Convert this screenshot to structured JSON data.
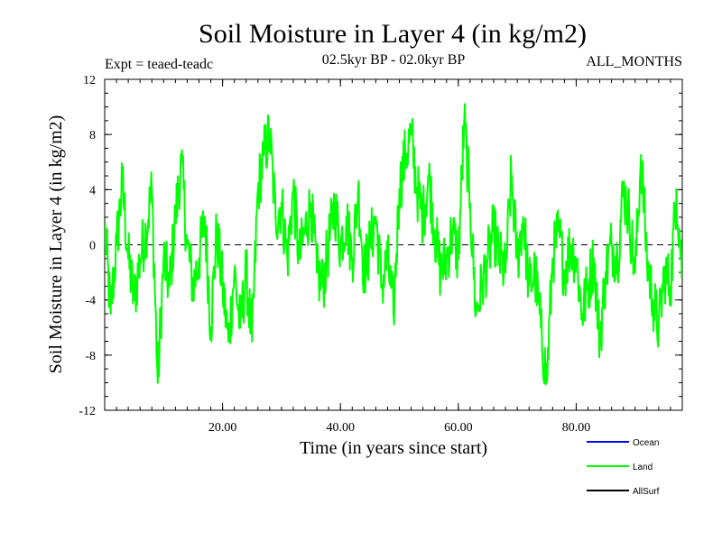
{
  "chart_data": {
    "type": "line",
    "title": "Soil Moisture in Layer 4 (in kg/m2)",
    "subtitle_left": "Expt = teaed-teadc",
    "subtitle_center": "02.5kyr BP - 02.0kyr BP",
    "subtitle_right": "ALL_MONTHS",
    "xlabel": "Time (in years since start)",
    "ylabel": "Soil Moisture in Layer 4 (in kg/m2)",
    "xlim": [
      0,
      98
    ],
    "ylim": [
      -12,
      12
    ],
    "x_ticks": [
      20,
      40,
      60,
      80
    ],
    "x_tick_labels": [
      "20.00",
      "40.00",
      "60.00",
      "80.00"
    ],
    "y_ticks": [
      -12,
      -8,
      -4,
      0,
      4,
      8,
      12
    ],
    "y_tick_labels": [
      "-12",
      "-8",
      "-4",
      "0",
      "4",
      "8",
      "12"
    ],
    "zero_line": "dashed",
    "legend": [
      {
        "name": "Ocean",
        "color": "#0000ff"
      },
      {
        "name": "Land",
        "color": "#00ff00"
      },
      {
        "name": "AllSurf",
        "color": "#000000"
      }
    ],
    "series": [
      {
        "name": "Land",
        "color": "#00ff00",
        "x": [
          0,
          1,
          2,
          3,
          4,
          5,
          6,
          7,
          8,
          9,
          10,
          11,
          12,
          13,
          14,
          15,
          16,
          17,
          18,
          19,
          20,
          21,
          22,
          23,
          24,
          25,
          26,
          27,
          28,
          29,
          30,
          31,
          32,
          33,
          34,
          35,
          36,
          37,
          38,
          39,
          40,
          41,
          42,
          43,
          44,
          45,
          46,
          47,
          48,
          49,
          50,
          51,
          52,
          53,
          54,
          55,
          56,
          57,
          58,
          59,
          60,
          61,
          62,
          63,
          64,
          65,
          66,
          67,
          68,
          69,
          70,
          71,
          72,
          73,
          74,
          75,
          76,
          77,
          78,
          79,
          80,
          81,
          82,
          83,
          84,
          85,
          86,
          87,
          88,
          89,
          90,
          91,
          92,
          93,
          94,
          95,
          96,
          97,
          98
        ],
        "values": [
          1.5,
          -5,
          0,
          4.5,
          -1,
          -4,
          -1,
          1,
          4,
          -10,
          -1,
          -3,
          2,
          6,
          0,
          -3,
          -1,
          2,
          -6,
          1,
          -3,
          -7,
          -2,
          -6,
          -2,
          -7,
          4,
          6.5,
          8,
          2,
          3,
          -1,
          4,
          -1,
          1,
          3,
          -2,
          -3,
          0,
          3,
          0,
          2,
          -1,
          4,
          -2,
          0,
          2,
          -3,
          -1,
          -5,
          4,
          6.5,
          8,
          4,
          2,
          5,
          1,
          -2,
          -1,
          1,
          -1,
          9,
          3,
          -5,
          -3,
          -1,
          1,
          -1,
          -2,
          5,
          -1,
          2,
          -3,
          -2,
          -6,
          -10,
          -1,
          1,
          -2,
          0,
          -1,
          -5,
          -3,
          -1,
          -7,
          -2,
          0,
          -1,
          4,
          2,
          -2,
          6.5,
          -1,
          -4,
          -6,
          -2,
          -3,
          4,
          -2
        ]
      }
    ]
  }
}
